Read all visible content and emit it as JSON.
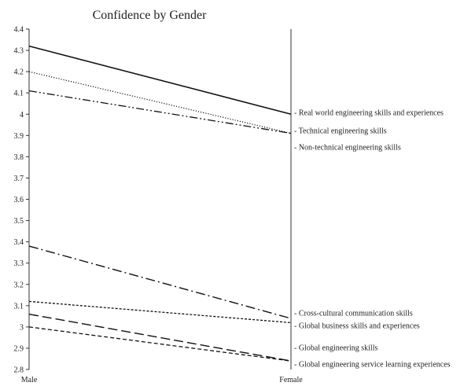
{
  "chart_data": {
    "type": "line",
    "title": "Confidence by Gender",
    "categories": [
      "Male",
      "Female"
    ],
    "ylim": [
      2.8,
      4.4
    ],
    "yticks": [
      "2.8",
      "2.9",
      "3",
      "3.1",
      "3.2",
      "3.3",
      "3.4",
      "3.5",
      "3.6",
      "3.7",
      "3.8",
      "3.9",
      "4",
      "4.1",
      "4.2",
      "4.3",
      "4.4"
    ],
    "grid": false,
    "legend": "right-labels",
    "series": [
      {
        "name": "- Real world engineering skills  and experiences",
        "values": [
          4.32,
          4.0
        ],
        "dash": "solid"
      },
      {
        "name": "- Technical engineering skills",
        "values": [
          4.2,
          3.91
        ],
        "dash": "dotted"
      },
      {
        "name": "- Non-technical engineering skills",
        "values": [
          4.11,
          3.91
        ],
        "dash": "dashdotdot"
      },
      {
        "name": "- Cross-cultural communication  skills",
        "values": [
          3.38,
          3.04
        ],
        "dash": "longdashdot"
      },
      {
        "name": "- Global business skills and experiences",
        "values": [
          3.12,
          3.02
        ],
        "dash": "shortdash"
      },
      {
        "name": "- Global engineering skills",
        "values": [
          3.06,
          2.84
        ],
        "dash": "longdash"
      },
      {
        "name": "- Global engineering service learning experiences",
        "values": [
          3.0,
          2.84
        ],
        "dash": "dash"
      }
    ]
  }
}
